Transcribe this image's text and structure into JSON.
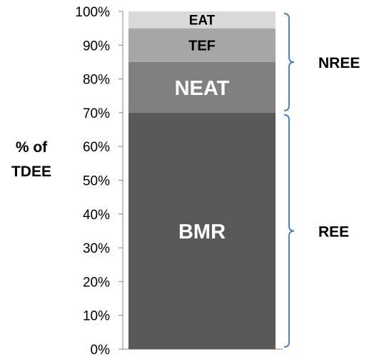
{
  "chart_data": {
    "type": "bar",
    "subtype": "stacked-100",
    "ylabel_lines": [
      "% of",
      "TDEE"
    ],
    "ylim": [
      0,
      100
    ],
    "yticks": [
      0,
      10,
      20,
      30,
      40,
      50,
      60,
      70,
      80,
      90,
      100
    ],
    "ytick_labels": [
      "0%",
      "10%",
      "20%",
      "30%",
      "40%",
      "50%",
      "60%",
      "70%",
      "80%",
      "90%",
      "100%"
    ],
    "grid": false,
    "segments": [
      {
        "name": "BMR",
        "from": 0,
        "to": 70,
        "color": "#595959",
        "label_color": "#ffffff"
      },
      {
        "name": "NEAT",
        "from": 70,
        "to": 85,
        "color": "#808080",
        "label_color": "#ffffff"
      },
      {
        "name": "TEF",
        "from": 85,
        "to": 95,
        "color": "#a6a6a6",
        "label_color": "#000000"
      },
      {
        "name": "EAT",
        "from": 95,
        "to": 100,
        "color": "#d9d9d9",
        "label_color": "#000000"
      }
    ],
    "braces": [
      {
        "label": "NREE",
        "from": 70,
        "to": 100,
        "color": "#4f81bd"
      },
      {
        "label": "REE",
        "from": 0,
        "to": 70,
        "color": "#4f81bd"
      }
    ]
  }
}
